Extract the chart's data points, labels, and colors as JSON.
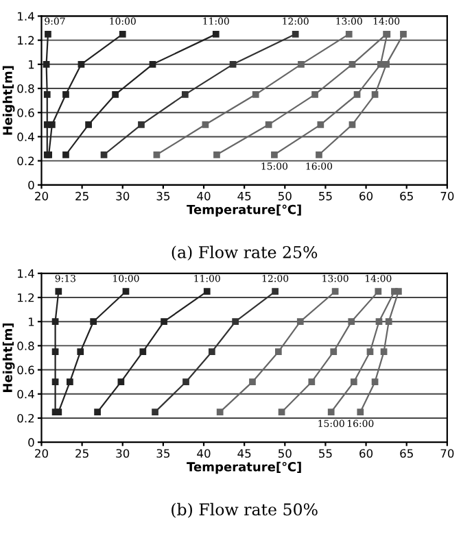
{
  "chart_data": [
    {
      "type": "line",
      "xlabel": "Temperature[℃]",
      "ylabel": "Height[m]",
      "xlim": [
        20,
        70
      ],
      "ylim": [
        0,
        1.4
      ],
      "xticks": [
        20,
        25,
        30,
        35,
        40,
        45,
        50,
        55,
        60,
        65,
        70
      ],
      "yticks": [
        0,
        0.2,
        0.4,
        0.6,
        0.8,
        1,
        1.2,
        1.4
      ],
      "grid": "y",
      "marker": "square",
      "line_style": "solid",
      "legend": false,
      "series": [
        {
          "color": "#222222",
          "x": [
            20.7,
            20.7,
            20.7,
            20.6,
            20.8
          ],
          "values": [
            0.25,
            0.5,
            0.75,
            1,
            1.25
          ]
        },
        {
          "color": "#222222",
          "x": [
            20.9,
            21.3,
            23.0,
            24.9,
            30.0
          ],
          "values": [
            0.25,
            0.5,
            0.75,
            1,
            1.25
          ]
        },
        {
          "color": "#222222",
          "x": [
            23.0,
            25.8,
            29.1,
            33.7,
            41.5
          ],
          "values": [
            0.25,
            0.5,
            0.75,
            1,
            1.25
          ]
        },
        {
          "color": "#333333",
          "x": [
            27.7,
            32.3,
            37.7,
            43.6,
            51.3
          ],
          "values": [
            0.25,
            0.5,
            0.75,
            1,
            1.25
          ]
        },
        {
          "color": "#666666",
          "x": [
            34.2,
            40.2,
            46.4,
            52.0,
            57.9
          ],
          "values": [
            0.25,
            0.5,
            0.75,
            1,
            1.25
          ]
        },
        {
          "color": "#666666",
          "x": [
            41.6,
            48.0,
            53.7,
            58.3,
            62.5
          ],
          "values": [
            0.25,
            0.5,
            0.75,
            1,
            1.25
          ]
        },
        {
          "color": "#666666",
          "x": [
            48.7,
            54.4,
            58.9,
            61.8,
            62.6
          ],
          "values": [
            0.25,
            0.5,
            0.75,
            1,
            1.25
          ]
        },
        {
          "color": "#666666",
          "x": [
            54.2,
            58.3,
            61.1,
            62.5,
            64.6
          ],
          "values": [
            0.25,
            0.5,
            0.75,
            1,
            1.25
          ]
        }
      ],
      "annotations": [
        {
          "text": "9:07",
          "x": 20.8,
          "y": 1.25
        },
        {
          "text": "10:00",
          "x": 30.0,
          "y": 1.25
        },
        {
          "text": "11:00",
          "x": 41.5,
          "y": 1.25
        },
        {
          "text": "12:00",
          "x": 51.3,
          "y": 1.25
        },
        {
          "text": "13:00",
          "x": 57.9,
          "y": 1.25
        },
        {
          "text": "14:00",
          "x": 62.5,
          "y": 1.25
        },
        {
          "text": "15:00",
          "x": 48.7,
          "y": 0.25
        },
        {
          "text": "16:00",
          "x": 54.2,
          "y": 0.25
        },
        "(a) Flow rate 25%"
      ]
    },
    {
      "type": "line",
      "xlabel": "Temperature[℃]",
      "ylabel": "Height[m]",
      "xlim": [
        20,
        70
      ],
      "ylim": [
        0,
        1.4
      ],
      "xticks": [
        20,
        25,
        30,
        35,
        40,
        45,
        50,
        55,
        60,
        65,
        70
      ],
      "yticks": [
        0,
        0.2,
        0.4,
        0.6,
        0.8,
        1,
        1.2,
        1.4
      ],
      "grid": "y",
      "marker": "square",
      "line_style": "solid",
      "legend": false,
      "series": [
        {
          "color": "#222222",
          "x": [
            21.7,
            21.7,
            21.7,
            21.7,
            22.1
          ],
          "values": [
            0.25,
            0.5,
            0.75,
            1,
            1.25
          ]
        },
        {
          "color": "#222222",
          "x": [
            22.1,
            23.5,
            24.8,
            26.4,
            30.4
          ],
          "values": [
            0.25,
            0.5,
            0.75,
            1,
            1.25
          ]
        },
        {
          "color": "#222222",
          "x": [
            26.9,
            29.8,
            32.5,
            35.1,
            40.4
          ],
          "values": [
            0.25,
            0.5,
            0.75,
            1,
            1.25
          ]
        },
        {
          "color": "#333333",
          "x": [
            34.0,
            37.8,
            41.0,
            43.9,
            48.8
          ],
          "values": [
            0.25,
            0.5,
            0.75,
            1,
            1.25
          ]
        },
        {
          "color": "#666666",
          "x": [
            42.0,
            46.0,
            49.2,
            51.9,
            56.2
          ],
          "values": [
            0.25,
            0.5,
            0.75,
            1,
            1.25
          ]
        },
        {
          "color": "#666666",
          "x": [
            49.6,
            53.3,
            56.0,
            58.2,
            61.5
          ],
          "values": [
            0.25,
            0.5,
            0.75,
            1,
            1.25
          ]
        },
        {
          "color": "#666666",
          "x": [
            55.7,
            58.5,
            60.5,
            61.6,
            63.5
          ],
          "values": [
            0.25,
            0.5,
            0.75,
            1,
            1.25
          ]
        },
        {
          "color": "#666666",
          "x": [
            59.3,
            61.1,
            62.2,
            62.8,
            64.0
          ],
          "values": [
            0.25,
            0.5,
            0.75,
            1,
            1.25
          ]
        }
      ],
      "annotations": [
        {
          "text": "9:13",
          "x": 22.1,
          "y": 1.25
        },
        {
          "text": "10:00",
          "x": 30.4,
          "y": 1.25
        },
        {
          "text": "11:00",
          "x": 40.4,
          "y": 1.25
        },
        {
          "text": "12:00",
          "x": 48.8,
          "y": 1.25
        },
        {
          "text": "13:00",
          "x": 56.2,
          "y": 1.25
        },
        {
          "text": "14:00",
          "x": 61.5,
          "y": 1.25
        },
        {
          "text": "15:00",
          "x": 55.7,
          "y": 0.25
        },
        {
          "text": "16:00",
          "x": 59.3,
          "y": 0.25
        },
        "(b) Flow rate 50%"
      ]
    }
  ]
}
